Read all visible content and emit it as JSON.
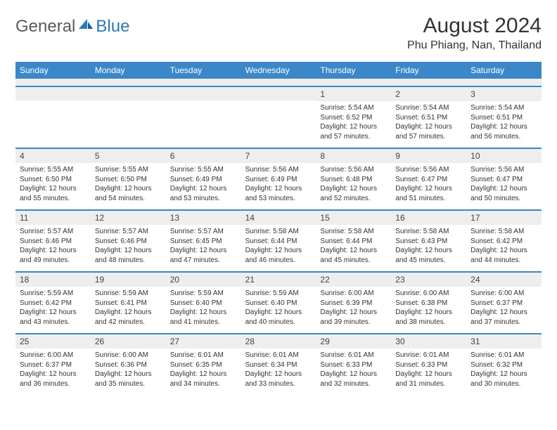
{
  "logo": {
    "general": "General",
    "blue": "Blue"
  },
  "title": "August 2024",
  "location": "Phu Phiang, Nan, Thailand",
  "colors": {
    "header_bg": "#3b87c8",
    "daynum_bg": "#eeeeee",
    "week_border": "#3b87c8",
    "logo_gray": "#5a5a5a",
    "logo_blue": "#2a7ab9"
  },
  "fonts": {
    "title_size": 30,
    "location_size": 16,
    "weekday_size": 12,
    "daynum_size": 12,
    "content_size": 10
  },
  "weekdays": [
    "Sunday",
    "Monday",
    "Tuesday",
    "Wednesday",
    "Thursday",
    "Friday",
    "Saturday"
  ],
  "weeks": [
    [
      {
        "n": "",
        "lines": []
      },
      {
        "n": "",
        "lines": []
      },
      {
        "n": "",
        "lines": []
      },
      {
        "n": "",
        "lines": []
      },
      {
        "n": "1",
        "lines": [
          "Sunrise: 5:54 AM",
          "Sunset: 6:52 PM",
          "Daylight: 12 hours and 57 minutes."
        ]
      },
      {
        "n": "2",
        "lines": [
          "Sunrise: 5:54 AM",
          "Sunset: 6:51 PM",
          "Daylight: 12 hours and 57 minutes."
        ]
      },
      {
        "n": "3",
        "lines": [
          "Sunrise: 5:54 AM",
          "Sunset: 6:51 PM",
          "Daylight: 12 hours and 56 minutes."
        ]
      }
    ],
    [
      {
        "n": "4",
        "lines": [
          "Sunrise: 5:55 AM",
          "Sunset: 6:50 PM",
          "Daylight: 12 hours and 55 minutes."
        ]
      },
      {
        "n": "5",
        "lines": [
          "Sunrise: 5:55 AM",
          "Sunset: 6:50 PM",
          "Daylight: 12 hours and 54 minutes."
        ]
      },
      {
        "n": "6",
        "lines": [
          "Sunrise: 5:55 AM",
          "Sunset: 6:49 PM",
          "Daylight: 12 hours and 53 minutes."
        ]
      },
      {
        "n": "7",
        "lines": [
          "Sunrise: 5:56 AM",
          "Sunset: 6:49 PM",
          "Daylight: 12 hours and 53 minutes."
        ]
      },
      {
        "n": "8",
        "lines": [
          "Sunrise: 5:56 AM",
          "Sunset: 6:48 PM",
          "Daylight: 12 hours and 52 minutes."
        ]
      },
      {
        "n": "9",
        "lines": [
          "Sunrise: 5:56 AM",
          "Sunset: 6:47 PM",
          "Daylight: 12 hours and 51 minutes."
        ]
      },
      {
        "n": "10",
        "lines": [
          "Sunrise: 5:56 AM",
          "Sunset: 6:47 PM",
          "Daylight: 12 hours and 50 minutes."
        ]
      }
    ],
    [
      {
        "n": "11",
        "lines": [
          "Sunrise: 5:57 AM",
          "Sunset: 6:46 PM",
          "Daylight: 12 hours and 49 minutes."
        ]
      },
      {
        "n": "12",
        "lines": [
          "Sunrise: 5:57 AM",
          "Sunset: 6:46 PM",
          "Daylight: 12 hours and 48 minutes."
        ]
      },
      {
        "n": "13",
        "lines": [
          "Sunrise: 5:57 AM",
          "Sunset: 6:45 PM",
          "Daylight: 12 hours and 47 minutes."
        ]
      },
      {
        "n": "14",
        "lines": [
          "Sunrise: 5:58 AM",
          "Sunset: 6:44 PM",
          "Daylight: 12 hours and 46 minutes."
        ]
      },
      {
        "n": "15",
        "lines": [
          "Sunrise: 5:58 AM",
          "Sunset: 6:44 PM",
          "Daylight: 12 hours and 45 minutes."
        ]
      },
      {
        "n": "16",
        "lines": [
          "Sunrise: 5:58 AM",
          "Sunset: 6:43 PM",
          "Daylight: 12 hours and 45 minutes."
        ]
      },
      {
        "n": "17",
        "lines": [
          "Sunrise: 5:58 AM",
          "Sunset: 6:42 PM",
          "Daylight: 12 hours and 44 minutes."
        ]
      }
    ],
    [
      {
        "n": "18",
        "lines": [
          "Sunrise: 5:59 AM",
          "Sunset: 6:42 PM",
          "Daylight: 12 hours and 43 minutes."
        ]
      },
      {
        "n": "19",
        "lines": [
          "Sunrise: 5:59 AM",
          "Sunset: 6:41 PM",
          "Daylight: 12 hours and 42 minutes."
        ]
      },
      {
        "n": "20",
        "lines": [
          "Sunrise: 5:59 AM",
          "Sunset: 6:40 PM",
          "Daylight: 12 hours and 41 minutes."
        ]
      },
      {
        "n": "21",
        "lines": [
          "Sunrise: 5:59 AM",
          "Sunset: 6:40 PM",
          "Daylight: 12 hours and 40 minutes."
        ]
      },
      {
        "n": "22",
        "lines": [
          "Sunrise: 6:00 AM",
          "Sunset: 6:39 PM",
          "Daylight: 12 hours and 39 minutes."
        ]
      },
      {
        "n": "23",
        "lines": [
          "Sunrise: 6:00 AM",
          "Sunset: 6:38 PM",
          "Daylight: 12 hours and 38 minutes."
        ]
      },
      {
        "n": "24",
        "lines": [
          "Sunrise: 6:00 AM",
          "Sunset: 6:37 PM",
          "Daylight: 12 hours and 37 minutes."
        ]
      }
    ],
    [
      {
        "n": "25",
        "lines": [
          "Sunrise: 6:00 AM",
          "Sunset: 6:37 PM",
          "Daylight: 12 hours and 36 minutes."
        ]
      },
      {
        "n": "26",
        "lines": [
          "Sunrise: 6:00 AM",
          "Sunset: 6:36 PM",
          "Daylight: 12 hours and 35 minutes."
        ]
      },
      {
        "n": "27",
        "lines": [
          "Sunrise: 6:01 AM",
          "Sunset: 6:35 PM",
          "Daylight: 12 hours and 34 minutes."
        ]
      },
      {
        "n": "28",
        "lines": [
          "Sunrise: 6:01 AM",
          "Sunset: 6:34 PM",
          "Daylight: 12 hours and 33 minutes."
        ]
      },
      {
        "n": "29",
        "lines": [
          "Sunrise: 6:01 AM",
          "Sunset: 6:33 PM",
          "Daylight: 12 hours and 32 minutes."
        ]
      },
      {
        "n": "30",
        "lines": [
          "Sunrise: 6:01 AM",
          "Sunset: 6:33 PM",
          "Daylight: 12 hours and 31 minutes."
        ]
      },
      {
        "n": "31",
        "lines": [
          "Sunrise: 6:01 AM",
          "Sunset: 6:32 PM",
          "Daylight: 12 hours and 30 minutes."
        ]
      }
    ]
  ]
}
